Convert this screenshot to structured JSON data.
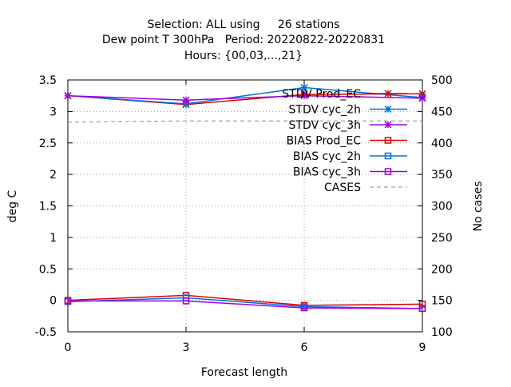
{
  "title_lines": [
    "Selection: ALL using     26 stations",
    "Dew point T 300hPa   Period: 20220822-20220831",
    "Hours: {00,03,...,21}"
  ],
  "chart_data": {
    "type": "line",
    "xlabel": "Forecast length",
    "ylabel": "deg C",
    "y2label": "No cases",
    "x": [
      0,
      3,
      6,
      9
    ],
    "xlim": [
      0,
      9
    ],
    "ylim": [
      -0.5,
      3.5
    ],
    "y2lim": [
      100,
      500
    ],
    "x_ticks": [
      "0",
      "3",
      "6",
      "9"
    ],
    "y_ticks": [
      "-0.5",
      "0",
      "0.5",
      "1",
      "1.5",
      "2",
      "2.5",
      "3",
      "3.5"
    ],
    "y2_ticks": [
      "100",
      "150",
      "200",
      "250",
      "300",
      "350",
      "400",
      "450",
      "500"
    ],
    "grid": true,
    "legend_position": "top-right",
    "series": [
      {
        "name": "STDV Prod_EC",
        "axis": "y",
        "color": "#dd0000",
        "marker": "star",
        "values": [
          3.25,
          3.11,
          3.27,
          3.28
        ]
      },
      {
        "name": "STDV cyc_2h",
        "axis": "y",
        "color": "#0070e0",
        "marker": "star",
        "values": [
          3.25,
          3.12,
          3.38,
          3.22
        ]
      },
      {
        "name": "STDV cyc_3h",
        "axis": "y",
        "color": "#a000e0",
        "marker": "star",
        "values": [
          3.25,
          3.18,
          3.25,
          3.21
        ]
      },
      {
        "name": "BIAS Prod_EC",
        "axis": "y",
        "color": "#dd0000",
        "marker": "square",
        "values": [
          0.0,
          0.08,
          -0.08,
          -0.06
        ]
      },
      {
        "name": "BIAS cyc_2h",
        "axis": "y",
        "color": "#0070e0",
        "marker": "square",
        "values": [
          -0.02,
          0.04,
          -0.1,
          -0.13
        ]
      },
      {
        "name": "BIAS cyc_3h",
        "axis": "y",
        "color": "#a000e0",
        "marker": "square",
        "values": [
          -0.01,
          -0.01,
          -0.12,
          -0.13
        ]
      },
      {
        "name": "CASES",
        "axis": "y2",
        "color": "#888888",
        "dashed": true,
        "values": [
          433,
          435,
          435,
          435
        ]
      }
    ]
  }
}
